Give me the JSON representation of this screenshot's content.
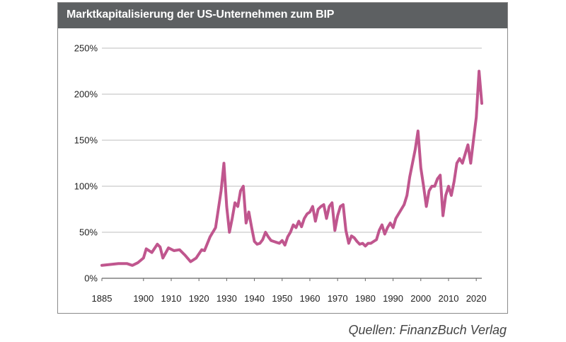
{
  "title": "Marktkapitalisierung der US-Unternehmen zum BIP",
  "source": "Quellen: FinanzBuch Verlag",
  "colors": {
    "line": "#c0568e",
    "grid": "#bdbdbd",
    "header": "#5d6062"
  },
  "chart_data": {
    "type": "line",
    "title": "Marktkapitalisierung der US-Unternehmen zum BIP",
    "xlabel": "",
    "ylabel": "",
    "xlim": [
      1885,
      2022
    ],
    "ylim": [
      0,
      250
    ],
    "grid": "horizontal",
    "x_ticks": [
      "1885",
      "1900",
      "1910",
      "1920",
      "1930",
      "1940",
      "1950",
      "1960",
      "1970",
      "1980",
      "1990",
      "2000",
      "2010",
      "2020"
    ],
    "y_ticks": [
      "0%",
      "50%",
      "100%",
      "150%",
      "200%",
      "250%"
    ],
    "x": [
      1885,
      1888,
      1891,
      1894,
      1896,
      1898,
      1900,
      1901,
      1903,
      1905,
      1906,
      1907,
      1909,
      1911,
      1913,
      1915,
      1917,
      1919,
      1921,
      1922,
      1924,
      1926,
      1927,
      1928,
      1929,
      1930,
      1931,
      1932,
      1933,
      1934,
      1935,
      1936,
      1937,
      1938,
      1939,
      1940,
      1941,
      1942,
      1943,
      1944,
      1945,
      1946,
      1947,
      1948,
      1949,
      1950,
      1951,
      1952,
      1953,
      1954,
      1955,
      1956,
      1957,
      1958,
      1959,
      1960,
      1961,
      1962,
      1963,
      1964,
      1965,
      1966,
      1967,
      1968,
      1969,
      1970,
      1971,
      1972,
      1973,
      1974,
      1975,
      1976,
      1977,
      1978,
      1979,
      1980,
      1981,
      1982,
      1983,
      1984,
      1985,
      1986,
      1987,
      1988,
      1989,
      1990,
      1991,
      1992,
      1993,
      1994,
      1995,
      1996,
      1997,
      1998,
      1999,
      2000,
      2001,
      2002,
      2003,
      2004,
      2005,
      2006,
      2007,
      2008,
      2009,
      2010,
      2011,
      2012,
      2013,
      2014,
      2015,
      2016,
      2017,
      2018,
      2019,
      2020,
      2021,
      2022
    ],
    "series": [
      {
        "values": [
          14,
          15,
          16,
          16,
          14,
          17,
          22,
          32,
          28,
          37,
          34,
          22,
          33,
          30,
          31,
          25,
          18,
          22,
          31,
          30,
          45,
          55,
          75,
          95,
          125,
          78,
          50,
          65,
          82,
          78,
          95,
          100,
          60,
          72,
          55,
          40,
          37,
          38,
          42,
          50,
          45,
          41,
          40,
          39,
          38,
          41,
          36,
          45,
          50,
          58,
          55,
          62,
          56,
          65,
          70,
          72,
          78,
          62,
          75,
          78,
          80,
          65,
          78,
          82,
          52,
          68,
          78,
          80,
          52,
          38,
          46,
          44,
          40,
          37,
          38,
          35,
          38,
          38,
          40,
          42,
          52,
          58,
          48,
          55,
          60,
          55,
          65,
          70,
          75,
          80,
          90,
          110,
          125,
          140,
          160,
          120,
          100,
          78,
          95,
          100,
          100,
          108,
          112,
          68,
          90,
          100,
          90,
          105,
          125,
          130,
          125,
          135,
          145,
          125,
          150,
          175,
          225,
          190
        ]
      }
    ]
  }
}
